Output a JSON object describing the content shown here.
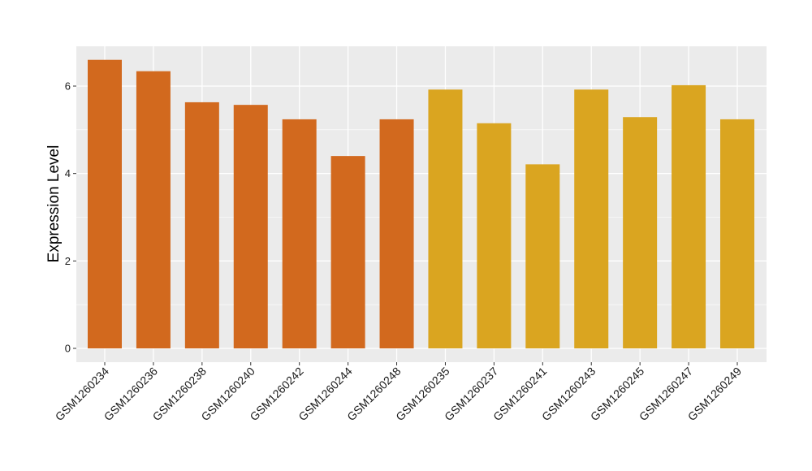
{
  "chart_data": {
    "type": "bar",
    "title": "",
    "xlabel": "",
    "ylabel": "Expression Level",
    "ylim": [
      0,
      6.9
    ],
    "yticks": [
      0,
      2,
      4,
      6
    ],
    "grid": true,
    "legend": "none",
    "categories": [
      "GSM1260234",
      "GSM1260236",
      "GSM1260238",
      "GSM1260240",
      "GSM1260242",
      "GSM1260244",
      "GSM1260248",
      "GSM1260235",
      "GSM1260237",
      "GSM1260241",
      "GSM1260243",
      "GSM1260245",
      "GSM1260247",
      "GSM1260249"
    ],
    "values": [
      6.6,
      6.34,
      5.63,
      5.57,
      5.24,
      4.4,
      5.24,
      5.92,
      5.15,
      4.21,
      5.92,
      5.29,
      6.02,
      5.24
    ],
    "bar_colors": [
      "#D2691E",
      "#D2691E",
      "#D2691E",
      "#D2691E",
      "#D2691E",
      "#D2691E",
      "#D2691E",
      "#DAA520",
      "#DAA520",
      "#DAA520",
      "#DAA520",
      "#DAA520",
      "#DAA520",
      "#DAA520"
    ],
    "panel_background": "#EBEBEB",
    "grid_color": "#FFFFFF"
  }
}
